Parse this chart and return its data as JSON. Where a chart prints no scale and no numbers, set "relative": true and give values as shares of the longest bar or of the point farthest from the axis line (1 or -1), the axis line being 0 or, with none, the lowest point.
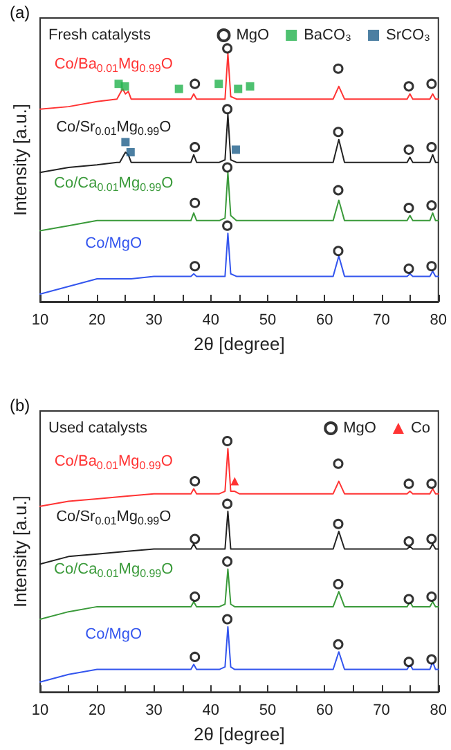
{
  "chart_data": [
    {
      "type": "line",
      "title": "(a)",
      "subtitle": "Fresh catalysts",
      "xlabel": "2θ [degree]",
      "ylabel": "Intensity [a.u.]",
      "relative": true,
      "xlim": [
        10,
        80
      ],
      "xticks": [
        10,
        {
          "value": 15,
          "label": null
        },
        20,
        {
          "value": 25,
          "label": null
        },
        30,
        {
          "value": 35,
          "label": null
        },
        40,
        {
          "value": 45,
          "label": null
        },
        50,
        {
          "value": 55,
          "label": null
        },
        60,
        {
          "value": 65,
          "label": null
        },
        70,
        {
          "value": 75,
          "label": null
        },
        80
      ],
      "grid": false,
      "legend": "top right",
      "x": [
        10,
        15,
        20,
        23.5,
        24,
        24.5,
        25,
        25.5,
        26,
        30,
        35,
        36.5,
        37,
        37.5,
        41.5,
        42.5,
        43,
        43.5,
        44.5,
        50,
        55,
        61.5,
        62.5,
        63.5,
        70,
        74.5,
        75,
        75.5,
        78.5,
        79,
        79.5,
        80
      ],
      "series": [
        {
          "name": "Co/Ba$_{0.01}$Mg$_{0.99}$O",
          "color": "#ff3333",
          "values": [
            0.76,
            0.77,
            0.79,
            0.8,
            0.82,
            0.84,
            0.82,
            0.83,
            0.8,
            0.8,
            0.8,
            0.8,
            0.82,
            0.8,
            0.8,
            0.8,
            0.98,
            0.81,
            0.8,
            0.8,
            0.8,
            0.8,
            0.85,
            0.8,
            0.8,
            0.8,
            0.82,
            0.8,
            0.8,
            0.82,
            0.8,
            0.8
          ]
        },
        {
          "name": "Co/Sr$_{0.01}$Mg$_{0.99}$O",
          "color": "#222222",
          "values": [
            0.51,
            0.53,
            0.54,
            0.55,
            0.55,
            0.57,
            0.59,
            0.58,
            0.55,
            0.55,
            0.55,
            0.55,
            0.58,
            0.55,
            0.55,
            0.56,
            0.74,
            0.56,
            0.55,
            0.55,
            0.55,
            0.55,
            0.64,
            0.55,
            0.55,
            0.55,
            0.57,
            0.55,
            0.55,
            0.58,
            0.55,
            0.55
          ]
        },
        {
          "name": "Co/Ca$_{0.01}$Mg$_{0.99}$O",
          "color": "#3a9a3a",
          "values": [
            0.28,
            0.3,
            0.32,
            0.32,
            0.32,
            0.32,
            0.32,
            0.32,
            0.32,
            0.32,
            0.32,
            0.32,
            0.35,
            0.32,
            0.32,
            0.33,
            0.51,
            0.34,
            0.32,
            0.32,
            0.32,
            0.32,
            0.4,
            0.32,
            0.32,
            0.32,
            0.34,
            0.32,
            0.32,
            0.35,
            0.32,
            0.32
          ]
        },
        {
          "name": "Co/MgO",
          "color": "#3355ee",
          "values": [
            0.03,
            0.06,
            0.09,
            0.09,
            0.09,
            0.09,
            0.09,
            0.09,
            0.09,
            0.1,
            0.1,
            0.1,
            0.11,
            0.1,
            0.1,
            0.1,
            0.27,
            0.11,
            0.1,
            0.1,
            0.1,
            0.1,
            0.18,
            0.1,
            0.1,
            0.1,
            0.11,
            0.1,
            0.1,
            0.12,
            0.1,
            0.1
          ]
        },
        {
          "name": "MgO",
          "type": "scatter",
          "marker": "circle",
          "color": "#000000",
          "x": [
            37.2,
            42.9,
            62.4,
            74.8,
            78.8,
            37.2,
            42.9,
            62.4,
            74.8,
            78.8,
            37.2,
            42.9,
            62.4,
            74.8,
            78.8,
            37.2,
            42.9,
            62.4,
            74.8,
            78.8
          ],
          "values": [
            0.86,
            1.0,
            0.92,
            0.85,
            0.86,
            0.61,
            0.76,
            0.67,
            0.6,
            0.61,
            0.39,
            0.53,
            0.44,
            0.37,
            0.38,
            0.14,
            0.3,
            0.2,
            0.13,
            0.14
          ]
        },
        {
          "name": "BaCO₃",
          "type": "scatter",
          "marker": "square",
          "color": "#22b14c",
          "x": [
            23.8,
            24.9,
            34.4,
            41.4,
            44.8,
            46.9
          ],
          "values": [
            0.86,
            0.85,
            0.84,
            0.86,
            0.84,
            0.85
          ]
        },
        {
          "name": "SrCO₃",
          "type": "scatter",
          "marker": "square",
          "color": "#1f5f8b",
          "x": [
            25.0,
            25.9,
            44.4
          ],
          "values": [
            0.63,
            0.59,
            0.6
          ]
        }
      ]
    },
    {
      "type": "line",
      "title": "(b)",
      "subtitle": "Used catalysts",
      "xlabel": "2θ [degree]",
      "ylabel": "Intensity [a.u.]",
      "relative": true,
      "xlim": [
        10,
        80
      ],
      "xticks": [
        10,
        {
          "value": 15,
          "label": null
        },
        20,
        {
          "value": 25,
          "label": null
        },
        30,
        {
          "value": 35,
          "label": null
        },
        40,
        {
          "value": 45,
          "label": null
        },
        50,
        {
          "value": 55,
          "label": null
        },
        60,
        {
          "value": 65,
          "label": null
        },
        70,
        {
          "value": 75,
          "label": null
        },
        80
      ],
      "grid": false,
      "legend": "top right",
      "x": [
        10,
        15,
        20,
        25,
        30,
        35,
        36.5,
        37,
        37.5,
        41.5,
        42.5,
        43,
        43.5,
        44.2,
        45,
        50,
        55,
        61.5,
        62.5,
        63.5,
        70,
        74.5,
        75,
        75.5,
        78.5,
        79,
        79.5,
        80
      ],
      "series": [
        {
          "name": "Co/Ba$_{0.01}$Mg$_{0.99}$O",
          "color": "#ff3333",
          "values": [
            0.74,
            0.76,
            0.77,
            0.78,
            0.79,
            0.79,
            0.79,
            0.81,
            0.79,
            0.79,
            0.8,
            0.97,
            0.8,
            0.8,
            0.79,
            0.79,
            0.79,
            0.79,
            0.84,
            0.79,
            0.79,
            0.79,
            0.8,
            0.79,
            0.79,
            0.81,
            0.79,
            0.79
          ]
        },
        {
          "name": "Co/Sr$_{0.01}$Mg$_{0.99}$O",
          "color": "#222222",
          "values": [
            0.51,
            0.54,
            0.55,
            0.56,
            0.57,
            0.57,
            0.57,
            0.59,
            0.57,
            0.57,
            0.57,
            0.72,
            0.57,
            0.57,
            0.57,
            0.57,
            0.57,
            0.57,
            0.64,
            0.57,
            0.57,
            0.57,
            0.58,
            0.57,
            0.57,
            0.59,
            0.57,
            0.57
          ]
        },
        {
          "name": "Co/Ca$_{0.01}$Mg$_{0.99}$O",
          "color": "#3a9a3a",
          "values": [
            0.29,
            0.32,
            0.34,
            0.34,
            0.34,
            0.34,
            0.34,
            0.36,
            0.34,
            0.34,
            0.35,
            0.49,
            0.35,
            0.34,
            0.34,
            0.34,
            0.34,
            0.34,
            0.4,
            0.34,
            0.34,
            0.34,
            0.36,
            0.34,
            0.34,
            0.36,
            0.34,
            0.34
          ]
        },
        {
          "name": "Co/MgO",
          "color": "#3355ee",
          "values": [
            0.04,
            0.07,
            0.09,
            0.09,
            0.09,
            0.09,
            0.09,
            0.11,
            0.09,
            0.09,
            0.1,
            0.26,
            0.1,
            0.09,
            0.09,
            0.09,
            0.09,
            0.09,
            0.16,
            0.09,
            0.09,
            0.09,
            0.11,
            0.09,
            0.09,
            0.12,
            0.09,
            0.09
          ]
        },
        {
          "name": "MgO",
          "type": "scatter",
          "marker": "circle",
          "color": "#000000",
          "x": [
            37.2,
            42.9,
            62.4,
            74.8,
            78.8,
            37.2,
            42.9,
            62.4,
            74.8,
            78.8,
            37.2,
            42.9,
            62.4,
            74.8,
            78.8,
            37.2,
            42.9,
            62.4,
            74.8,
            78.8
          ],
          "values": [
            0.84,
            1.0,
            0.91,
            0.83,
            0.83,
            0.61,
            0.75,
            0.67,
            0.6,
            0.61,
            0.38,
            0.52,
            0.43,
            0.37,
            0.38,
            0.14,
            0.29,
            0.19,
            0.12,
            0.13
          ]
        },
        {
          "name": "Co",
          "type": "scatter",
          "marker": "triangle",
          "color": "#ff0000",
          "x": [
            44.2
          ],
          "values": [
            0.84
          ]
        }
      ]
    }
  ]
}
